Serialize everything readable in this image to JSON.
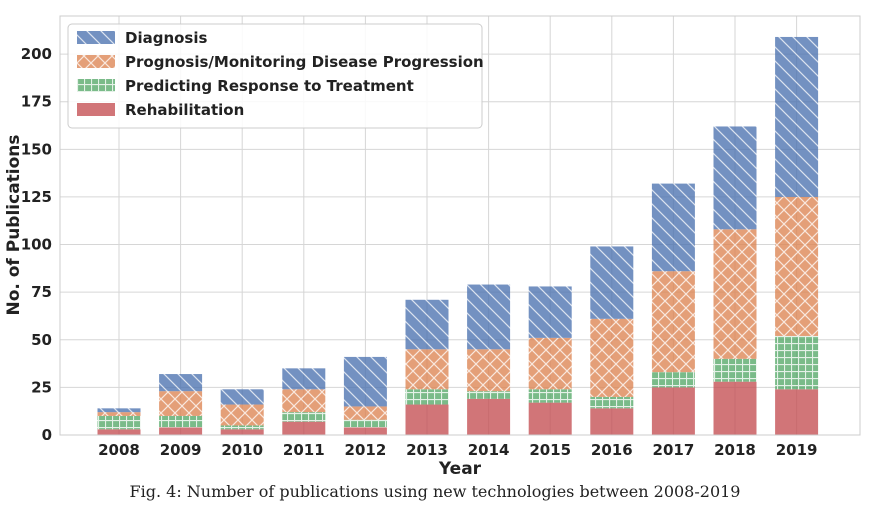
{
  "chart_data": {
    "type": "bar",
    "stacked": true,
    "categories": [
      "2008",
      "2009",
      "2010",
      "2011",
      "2012",
      "2013",
      "2014",
      "2015",
      "2016",
      "2017",
      "2018",
      "2019"
    ],
    "series": [
      {
        "name": "Rehabilitation",
        "color": "#c44e52",
        "pattern": "none",
        "values": [
          3,
          4,
          3,
          7,
          4,
          16,
          19,
          17,
          14,
          25,
          28,
          24
        ]
      },
      {
        "name": "Predicting Response to Treatment",
        "color": "#55a868",
        "pattern": "grid",
        "values": [
          7,
          6,
          2,
          5,
          4,
          8,
          4,
          7,
          6,
          8,
          12,
          28
        ]
      },
      {
        "name": "Prognosis/Monitoring Disease Progression",
        "color": "#dd8452",
        "pattern": "crosshatch",
        "values": [
          2,
          13,
          11,
          12,
          7,
          21,
          22,
          27,
          41,
          53,
          68,
          73
        ]
      },
      {
        "name": "Diagnosis",
        "color": "#4c72b0",
        "pattern": "diagonal",
        "values": [
          2,
          9,
          8,
          11,
          26,
          26,
          34,
          27,
          38,
          46,
          54,
          84
        ]
      }
    ],
    "legend_order": [
      "Diagnosis",
      "Prognosis/Monitoring Disease Progression",
      "Predicting Response to Treatment",
      "Rehabilitation"
    ],
    "legend_position": "top-left",
    "xlabel": "Year",
    "ylabel": "No. of Publications",
    "ylim": [
      0,
      220
    ],
    "yticks": [
      0,
      25,
      50,
      75,
      100,
      125,
      150,
      175,
      200
    ],
    "grid": true
  },
  "caption": "Fig. 4: Number of publications using new technologies between 2008-2019"
}
